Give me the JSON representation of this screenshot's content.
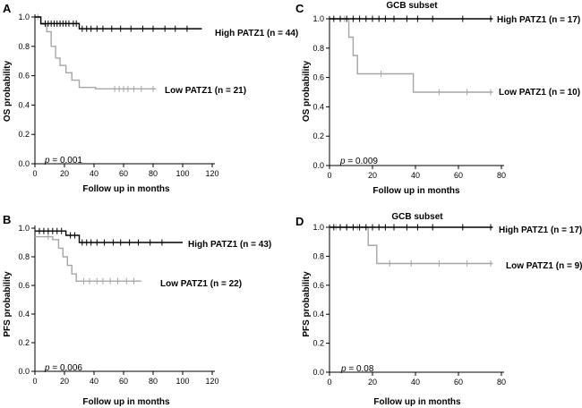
{
  "colors": {
    "high": "#000000",
    "low": "#a6a6a6",
    "axis": "#000000"
  },
  "chart_data": [
    {
      "type": "line",
      "chart_kind": "kaplan-meier",
      "panel": "A",
      "subtitle": "",
      "xlabel": "Follow up in months",
      "ylabel": "OS probability",
      "xlim": [
        0,
        120
      ],
      "ylim": [
        0,
        1
      ],
      "x_ticks": [
        0,
        20,
        40,
        60,
        80,
        100,
        120
      ],
      "y_ticks": [
        0.0,
        0.2,
        0.4,
        0.6,
        0.8,
        1.0
      ],
      "p_value": "= 0.001",
      "series": [
        {
          "name": "High PATZ1 (n = 44)",
          "color": "high",
          "steps": [
            [
              0,
              1.0
            ],
            [
              4,
              0.955
            ],
            [
              30,
              0.92
            ],
            [
              113,
              0.92
            ]
          ],
          "censors": [
            [
              7,
              0.955
            ],
            [
              9,
              0.955
            ],
            [
              11,
              0.955
            ],
            [
              13,
              0.955
            ],
            [
              15,
              0.955
            ],
            [
              17,
              0.955
            ],
            [
              19,
              0.955
            ],
            [
              21,
              0.955
            ],
            [
              23,
              0.955
            ],
            [
              26,
              0.955
            ],
            [
              28,
              0.955
            ],
            [
              32,
              0.92
            ],
            [
              35,
              0.92
            ],
            [
              38,
              0.92
            ],
            [
              42,
              0.92
            ],
            [
              46,
              0.92
            ],
            [
              52,
              0.92
            ],
            [
              58,
              0.92
            ],
            [
              65,
              0.92
            ],
            [
              73,
              0.92
            ],
            [
              80,
              0.92
            ],
            [
              88,
              0.92
            ],
            [
              95,
              0.92
            ],
            [
              103,
              0.92
            ]
          ]
        },
        {
          "name": "Low PATZ1 (n = 21)",
          "color": "low",
          "steps": [
            [
              0,
              1.0
            ],
            [
              4,
              0.95
            ],
            [
              8,
              0.9
            ],
            [
              11,
              0.8
            ],
            [
              14,
              0.72
            ],
            [
              17,
              0.67
            ],
            [
              21,
              0.62
            ],
            [
              25,
              0.57
            ],
            [
              30,
              0.52
            ],
            [
              41,
              0.51
            ],
            [
              82,
              0.51
            ]
          ],
          "censors": [
            [
              2,
              1.0
            ],
            [
              54,
              0.51
            ],
            [
              57,
              0.51
            ],
            [
              60,
              0.51
            ],
            [
              63,
              0.51
            ],
            [
              67,
              0.51
            ],
            [
              72,
              0.51
            ],
            [
              80,
              0.51
            ]
          ]
        }
      ]
    },
    {
      "type": "line",
      "chart_kind": "kaplan-meier",
      "panel": "B",
      "subtitle": "",
      "xlabel": "Follow up in months",
      "ylabel": "PFS probability",
      "xlim": [
        0,
        120
      ],
      "ylim": [
        0,
        1
      ],
      "x_ticks": [
        0,
        20,
        40,
        60,
        80,
        100,
        120
      ],
      "y_ticks": [
        0.0,
        0.2,
        0.4,
        0.6,
        0.8,
        1.0
      ],
      "p_value": "= 0.006",
      "series": [
        {
          "name": "High PATZ1 (n = 43)",
          "color": "high",
          "steps": [
            [
              0,
              0.98
            ],
            [
              21,
              0.95
            ],
            [
              30,
              0.9
            ],
            [
              100,
              0.9
            ]
          ],
          "censors": [
            [
              3,
              0.98
            ],
            [
              6,
              0.98
            ],
            [
              9,
              0.98
            ],
            [
              12,
              0.98
            ],
            [
              15,
              0.98
            ],
            [
              18,
              0.98
            ],
            [
              24,
              0.95
            ],
            [
              27,
              0.95
            ],
            [
              32,
              0.9
            ],
            [
              35,
              0.9
            ],
            [
              38,
              0.9
            ],
            [
              42,
              0.9
            ],
            [
              47,
              0.9
            ],
            [
              53,
              0.9
            ],
            [
              58,
              0.9
            ],
            [
              64,
              0.9
            ],
            [
              70,
              0.9
            ],
            [
              78,
              0.9
            ],
            [
              86,
              0.9
            ]
          ]
        },
        {
          "name": "Low PATZ1 (n = 22)",
          "color": "low",
          "steps": [
            [
              0,
              0.94
            ],
            [
              12,
              0.92
            ],
            [
              16,
              0.86
            ],
            [
              19,
              0.8
            ],
            [
              22,
              0.74
            ],
            [
              25,
              0.68
            ],
            [
              28,
              0.63
            ],
            [
              72,
              0.63
            ]
          ],
          "censors": [
            [
              9,
              0.94
            ],
            [
              33,
              0.63
            ],
            [
              37,
              0.63
            ],
            [
              42,
              0.63
            ],
            [
              46,
              0.63
            ],
            [
              51,
              0.63
            ],
            [
              56,
              0.63
            ],
            [
              62,
              0.63
            ],
            [
              67,
              0.63
            ]
          ]
        }
      ]
    },
    {
      "type": "line",
      "chart_kind": "kaplan-meier",
      "panel": "C",
      "subtitle": "GCB subset",
      "xlabel": "Follow up in months",
      "ylabel": "OS probability",
      "xlim": [
        0,
        80
      ],
      "ylim": [
        0,
        1
      ],
      "x_ticks": [
        0,
        20,
        40,
        60,
        80
      ],
      "y_ticks": [
        0.0,
        0.2,
        0.4,
        0.6,
        0.8,
        1.0
      ],
      "p_value": "= 0.009",
      "series": [
        {
          "name": "High PATZ1 (n = 17)",
          "color": "high",
          "steps": [
            [
              0,
              1.0
            ],
            [
              76,
              1.0
            ]
          ],
          "censors": [
            [
              2,
              1.0
            ],
            [
              5,
              1.0
            ],
            [
              8,
              1.0
            ],
            [
              11,
              1.0
            ],
            [
              14,
              1.0
            ],
            [
              17,
              1.0
            ],
            [
              20,
              1.0
            ],
            [
              23,
              1.0
            ],
            [
              26,
              1.0
            ],
            [
              30,
              1.0
            ],
            [
              36,
              1.0
            ],
            [
              41,
              1.0
            ],
            [
              48,
              1.0
            ],
            [
              62,
              1.0
            ],
            [
              75,
              1.0
            ]
          ]
        },
        {
          "name": "Low PATZ1 (n = 10)",
          "color": "low",
          "steps": [
            [
              0,
              1.0
            ],
            [
              9,
              0.875
            ],
            [
              11,
              0.75
            ],
            [
              13,
              0.625
            ],
            [
              39,
              0.5
            ],
            [
              76,
              0.5
            ]
          ],
          "censors": [
            [
              5,
              1.0
            ],
            [
              7,
              1.0
            ],
            [
              24,
              0.625
            ],
            [
              51,
              0.5
            ],
            [
              64,
              0.5
            ],
            [
              75,
              0.5
            ]
          ]
        }
      ]
    },
    {
      "type": "line",
      "chart_kind": "kaplan-meier",
      "panel": "D",
      "subtitle": "GCB subset",
      "xlabel": "Follow up in months",
      "ylabel": "PFS probability",
      "xlim": [
        0,
        80
      ],
      "ylim": [
        0,
        1
      ],
      "x_ticks": [
        0,
        20,
        40,
        60,
        80
      ],
      "y_ticks": [
        0.0,
        0.2,
        0.4,
        0.6,
        0.8,
        1.0
      ],
      "p_value": "= 0.08",
      "series": [
        {
          "name": "High PATZ1 (n = 17)",
          "color": "high",
          "steps": [
            [
              0,
              1.0
            ],
            [
              76,
              1.0
            ]
          ],
          "censors": [
            [
              2,
              1.0
            ],
            [
              5,
              1.0
            ],
            [
              8,
              1.0
            ],
            [
              11,
              1.0
            ],
            [
              14,
              1.0
            ],
            [
              17,
              1.0
            ],
            [
              20,
              1.0
            ],
            [
              23,
              1.0
            ],
            [
              26,
              1.0
            ],
            [
              30,
              1.0
            ],
            [
              36,
              1.0
            ],
            [
              41,
              1.0
            ],
            [
              48,
              1.0
            ],
            [
              62,
              1.0
            ],
            [
              75,
              1.0
            ]
          ]
        },
        {
          "name": "Low PATZ1 (n = 9)",
          "color": "low",
          "steps": [
            [
              0,
              1.0
            ],
            [
              18,
              0.875
            ],
            [
              22,
              0.75
            ],
            [
              76,
              0.75
            ]
          ],
          "censors": [
            [
              3,
              1.0
            ],
            [
              8,
              1.0
            ],
            [
              13,
              1.0
            ],
            [
              28,
              0.75
            ],
            [
              38,
              0.75
            ],
            [
              51,
              0.75
            ],
            [
              64,
              0.75
            ],
            [
              75,
              0.75
            ]
          ]
        }
      ]
    }
  ]
}
